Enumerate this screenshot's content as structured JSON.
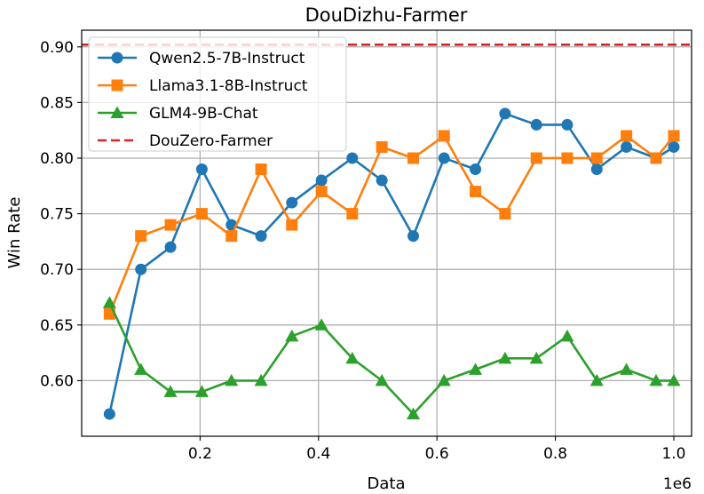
{
  "chart_data": {
    "type": "line",
    "title": "DouDizhu-Farmer",
    "xlabel": "Data",
    "ylabel": "Win Rate",
    "x_offset_text": "1e6",
    "xlim": [
      0.0,
      1.03
    ],
    "ylim": [
      0.55,
      0.915
    ],
    "x_ticks": [
      0.2,
      0.4,
      0.6,
      0.8,
      1.0
    ],
    "x_tick_labels": [
      "0.2",
      "0.4",
      "0.6",
      "0.8",
      "1.0"
    ],
    "y_ticks": [
      0.6,
      0.65,
      0.7,
      0.75,
      0.8,
      0.85,
      0.9
    ],
    "y_tick_labels": [
      "0.60",
      "0.65",
      "0.70",
      "0.75",
      "0.80",
      "0.85",
      "0.90"
    ],
    "grid": true,
    "legend_position": "top-left",
    "x": [
      0.05,
      0.1,
      0.15,
      0.2,
      0.25,
      0.3,
      0.35,
      0.4,
      0.45,
      0.5,
      0.55,
      0.6,
      0.65,
      0.7,
      0.75,
      0.8,
      0.85,
      0.9,
      0.95,
      0.975
    ],
    "series": [
      {
        "name": "Qwen2.5-7B-Instruct",
        "color": "#1f77b4",
        "marker": "circle",
        "x": [
          0.047,
          0.1,
          0.15,
          0.203,
          0.253,
          0.303,
          0.355,
          0.405,
          0.457,
          0.507,
          0.56,
          0.612,
          0.665,
          0.715,
          0.768,
          0.82,
          0.87,
          0.92,
          0.97,
          1.0
        ],
        "values": [
          0.57,
          0.7,
          0.72,
          0.79,
          0.74,
          0.73,
          0.76,
          0.78,
          0.8,
          0.78,
          0.73,
          0.8,
          0.79,
          0.84,
          0.83,
          0.83,
          0.79,
          0.81,
          0.8,
          0.81
        ]
      },
      {
        "name": "Llama3.1-8B-Instruct",
        "color": "#ff7f0e",
        "marker": "square",
        "x": [
          0.047,
          0.1,
          0.15,
          0.203,
          0.253,
          0.303,
          0.355,
          0.405,
          0.457,
          0.507,
          0.56,
          0.612,
          0.665,
          0.715,
          0.768,
          0.82,
          0.87,
          0.92,
          0.97,
          1.0
        ],
        "values": [
          0.66,
          0.73,
          0.74,
          0.75,
          0.73,
          0.79,
          0.74,
          0.77,
          0.75,
          0.81,
          0.8,
          0.82,
          0.77,
          0.75,
          0.8,
          0.8,
          0.8,
          0.82,
          0.8,
          0.82
        ]
      },
      {
        "name": "GLM4-9B-Chat",
        "color": "#2ca02c",
        "marker": "triangle",
        "x": [
          0.047,
          0.1,
          0.15,
          0.203,
          0.253,
          0.303,
          0.355,
          0.405,
          0.457,
          0.507,
          0.56,
          0.612,
          0.665,
          0.715,
          0.768,
          0.82,
          0.87,
          0.92,
          0.97,
          1.0
        ],
        "values": [
          0.67,
          0.61,
          0.59,
          0.59,
          0.6,
          0.6,
          0.64,
          0.65,
          0.62,
          0.6,
          0.57,
          0.6,
          0.61,
          0.62,
          0.62,
          0.64,
          0.6,
          0.61,
          0.6,
          0.6
        ]
      }
    ],
    "reference_lines": [
      {
        "name": "DouZero-Farmer",
        "color": "#d62728",
        "style": "dashed",
        "y": 0.902
      }
    ]
  }
}
